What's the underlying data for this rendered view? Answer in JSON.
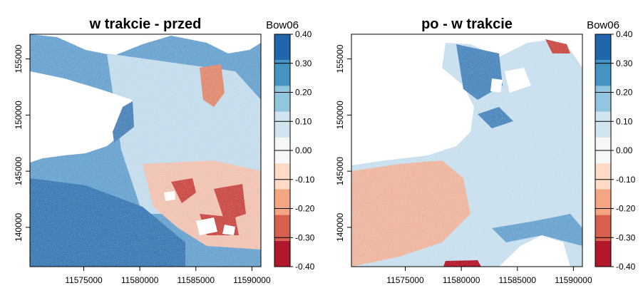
{
  "chart_data": [
    {
      "type": "heatmap",
      "title": "w trakcie - przed",
      "x_ticks": [
        "11575000",
        "11580000",
        "11585000",
        "11590000"
      ],
      "y_ticks": [
        "140000",
        "145000",
        "150000",
        "155000"
      ],
      "x_tick_values": [
        11575000,
        11580000,
        11585000,
        11590000
      ],
      "y_tick_values": [
        140000,
        145000,
        150000,
        155000
      ],
      "xlim": [
        11570200,
        11590800
      ],
      "ylim": [
        136500,
        157200
      ],
      "legend": {
        "title": "Bow06",
        "labels": [
          "0.40",
          "0.30",
          "0.20",
          "0.10",
          "0.00",
          "-0.10",
          "-0.20",
          "-0.30",
          "-0.40"
        ],
        "range": [
          -0.4,
          0.4
        ]
      }
    },
    {
      "type": "heatmap",
      "title": "po - w trakcie",
      "x_ticks": [
        "11575000",
        "11580000",
        "11585000",
        "11590000"
      ],
      "y_ticks": [
        "140000",
        "145000",
        "150000",
        "155000"
      ],
      "x_tick_values": [
        11575000,
        11580000,
        11585000,
        11590000
      ],
      "y_tick_values": [
        140000,
        145000,
        150000,
        155000
      ],
      "xlim": [
        11570200,
        11590800
      ],
      "ylim": [
        136500,
        157200
      ],
      "legend": {
        "title": "Bow06",
        "labels": [
          "0.40",
          "0.30",
          "0.20",
          "0.10",
          "0.00",
          "-0.10",
          "-0.20",
          "-0.30",
          "-0.40"
        ],
        "range": [
          -0.4,
          0.4
        ]
      }
    }
  ],
  "colors": {
    "scale": [
      "#b2182b",
      "#d6604d",
      "#f4a582",
      "#fddbc7",
      "#f7f7f7",
      "#d1e5f0",
      "#92c5de",
      "#4393c3",
      "#2166ac"
    ]
  }
}
